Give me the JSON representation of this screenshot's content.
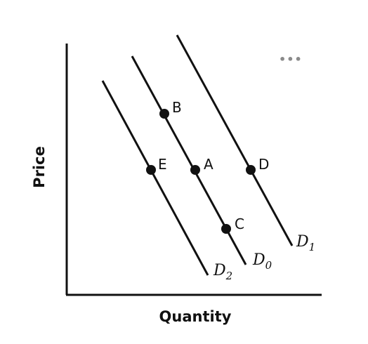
{
  "diagram": {
    "axes": {
      "x_label": "Quantity",
      "y_label": "Price"
    },
    "curves": [
      {
        "id": "D2",
        "letter": "D",
        "subscript": "2"
      },
      {
        "id": "D0",
        "letter": "D",
        "subscript": "0"
      },
      {
        "id": "D1",
        "letter": "D",
        "subscript": "1"
      }
    ],
    "points": [
      {
        "label": "B",
        "curve": "D0"
      },
      {
        "label": "E",
        "curve": "D2"
      },
      {
        "label": "A",
        "curve": "D0"
      },
      {
        "label": "D",
        "curve": "D1"
      },
      {
        "label": "C",
        "curve": "D0"
      }
    ],
    "more_menu": "•••",
    "colors": {
      "ink": "#111111",
      "menu": "#8a8a8a",
      "background": "#ffffff"
    }
  }
}
